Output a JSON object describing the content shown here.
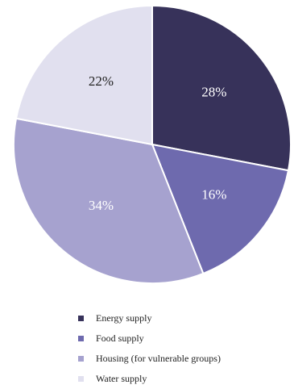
{
  "chart_data": {
    "type": "pie",
    "categories": [
      "Energy supply",
      "Food supply",
      "Housing (for vulnerable groups)",
      "Water supply"
    ],
    "values": [
      28,
      16,
      34,
      22
    ],
    "value_labels": [
      "28%",
      "16%",
      "34%",
      "22%"
    ],
    "colors": [
      "#37325a",
      "#6e6aae",
      "#a6a2cf",
      "#e1e0ef"
    ],
    "label_colors": [
      "#ffffff",
      "#ffffff",
      "#ffffff",
      "#222222"
    ],
    "start_angle": "12 o'clock",
    "direction": "clockwise",
    "legend": {
      "position": "bottom"
    }
  }
}
